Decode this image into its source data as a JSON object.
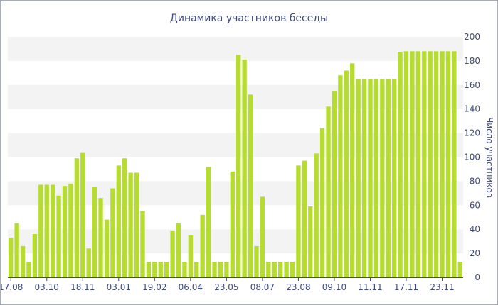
{
  "chart_data": {
    "type": "bar",
    "title": "Динамика участников беседы",
    "xlabel": "",
    "ylabel": "Число участников",
    "ylim": [
      0,
      200
    ],
    "yticks": [
      0,
      20,
      40,
      60,
      80,
      100,
      120,
      140,
      160,
      180,
      200
    ],
    "y_axis_side": "right",
    "grid": "alternating horizontal bands",
    "legend": "none",
    "bar_color": "#b5dc2e",
    "x_ticks": [
      {
        "label": "17.08",
        "index": 0
      },
      {
        "label": "03.10",
        "index": 6
      },
      {
        "label": "18.11",
        "index": 12
      },
      {
        "label": "03.01",
        "index": 18
      },
      {
        "label": "19.02",
        "index": 24
      },
      {
        "label": "06.04",
        "index": 30
      },
      {
        "label": "23.05",
        "index": 36
      },
      {
        "label": "08.07",
        "index": 42
      },
      {
        "label": "23.08",
        "index": 48
      },
      {
        "label": "09.10",
        "index": 54
      },
      {
        "label": "11.11",
        "index": 60
      },
      {
        "label": "17.11",
        "index": 66
      },
      {
        "label": "23.11",
        "index": 72
      }
    ],
    "values": [
      33,
      45,
      26,
      13,
      36,
      77,
      77,
      77,
      68,
      76,
      78,
      99,
      104,
      24,
      75,
      66,
      48,
      74,
      93,
      99,
      87,
      87,
      55,
      13,
      13,
      13,
      13,
      39,
      45,
      13,
      35,
      13,
      52,
      92,
      13,
      13,
      13,
      88,
      185,
      181,
      152,
      26,
      67,
      13,
      13,
      13,
      13,
      13,
      93,
      97,
      59,
      103,
      124,
      142,
      155,
      168,
      172,
      178,
      165,
      165,
      165,
      165,
      165,
      165,
      165,
      187,
      188,
      188,
      188,
      188,
      188,
      188,
      188,
      188,
      188,
      13
    ]
  }
}
